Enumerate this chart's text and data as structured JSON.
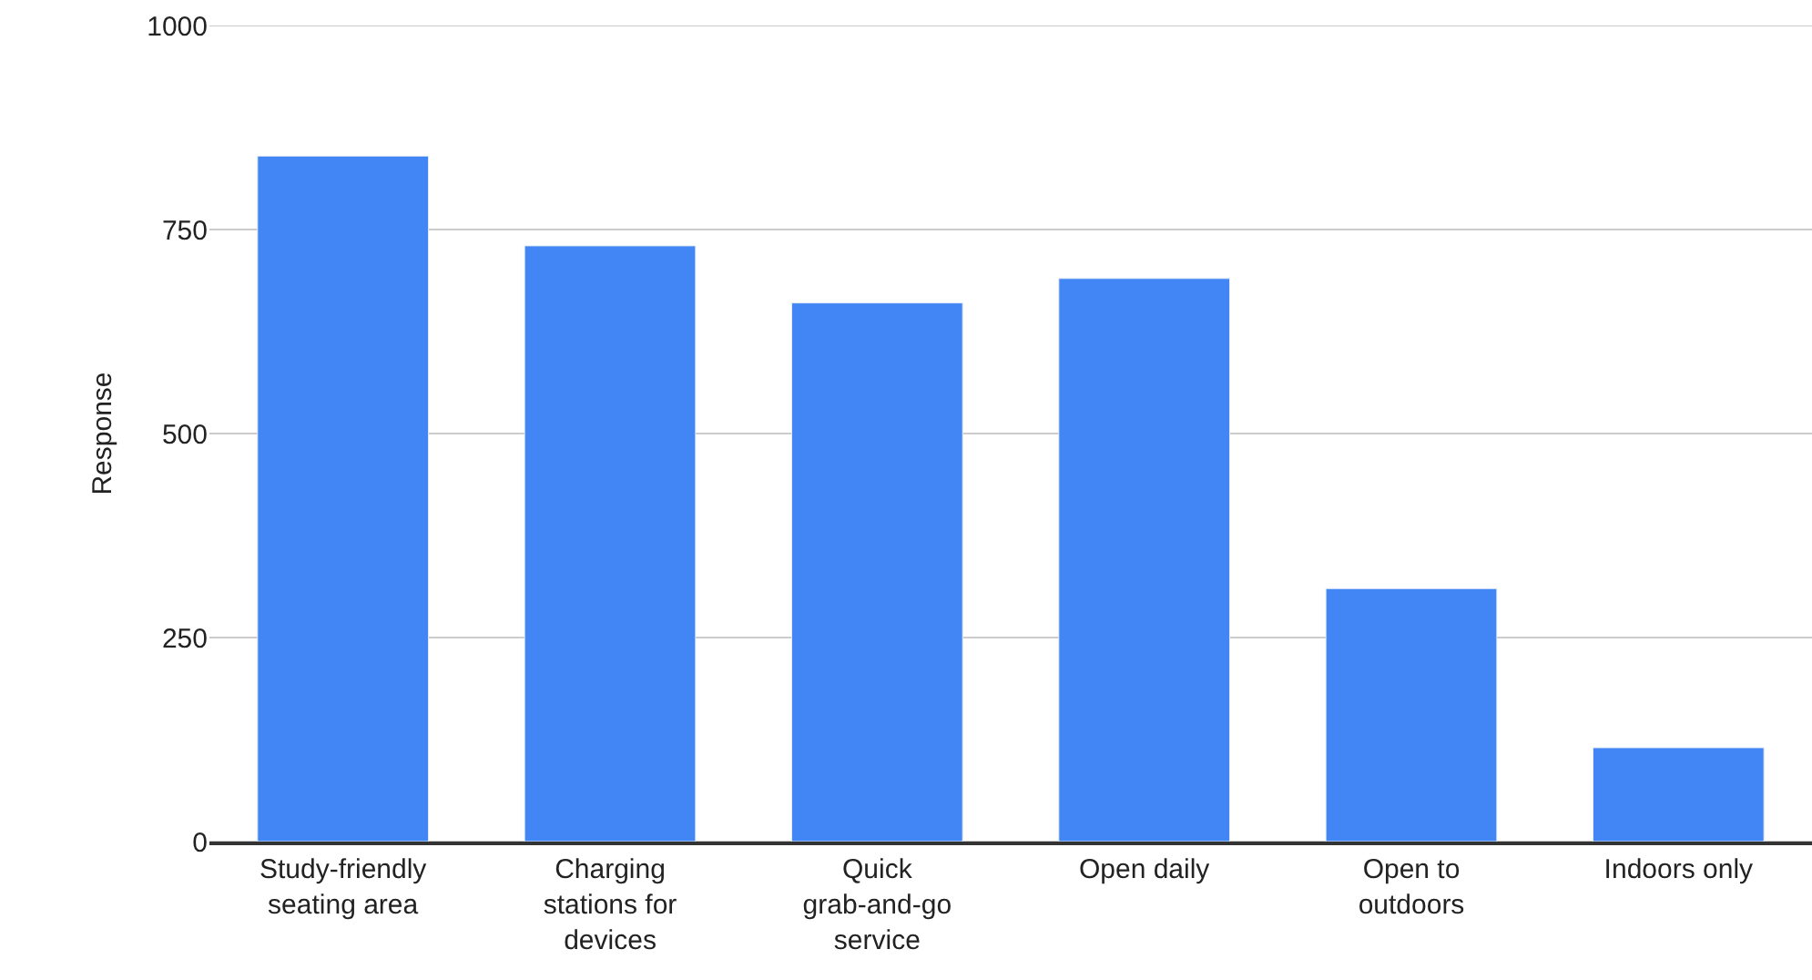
{
  "chart_data": {
    "type": "bar",
    "ylabel": "Response",
    "categories": [
      "Study-friendly seating area",
      "Charging stations for devices",
      "Quick grab-and-go service",
      "Open daily",
      "Open to outdoors",
      "Indoors only"
    ],
    "values": [
      840,
      730,
      660,
      690,
      310,
      115
    ],
    "color": "#4285f4",
    "ylim": [
      0,
      1000
    ],
    "yticks": [
      0,
      250,
      500,
      750,
      1000
    ],
    "grid": "y"
  }
}
